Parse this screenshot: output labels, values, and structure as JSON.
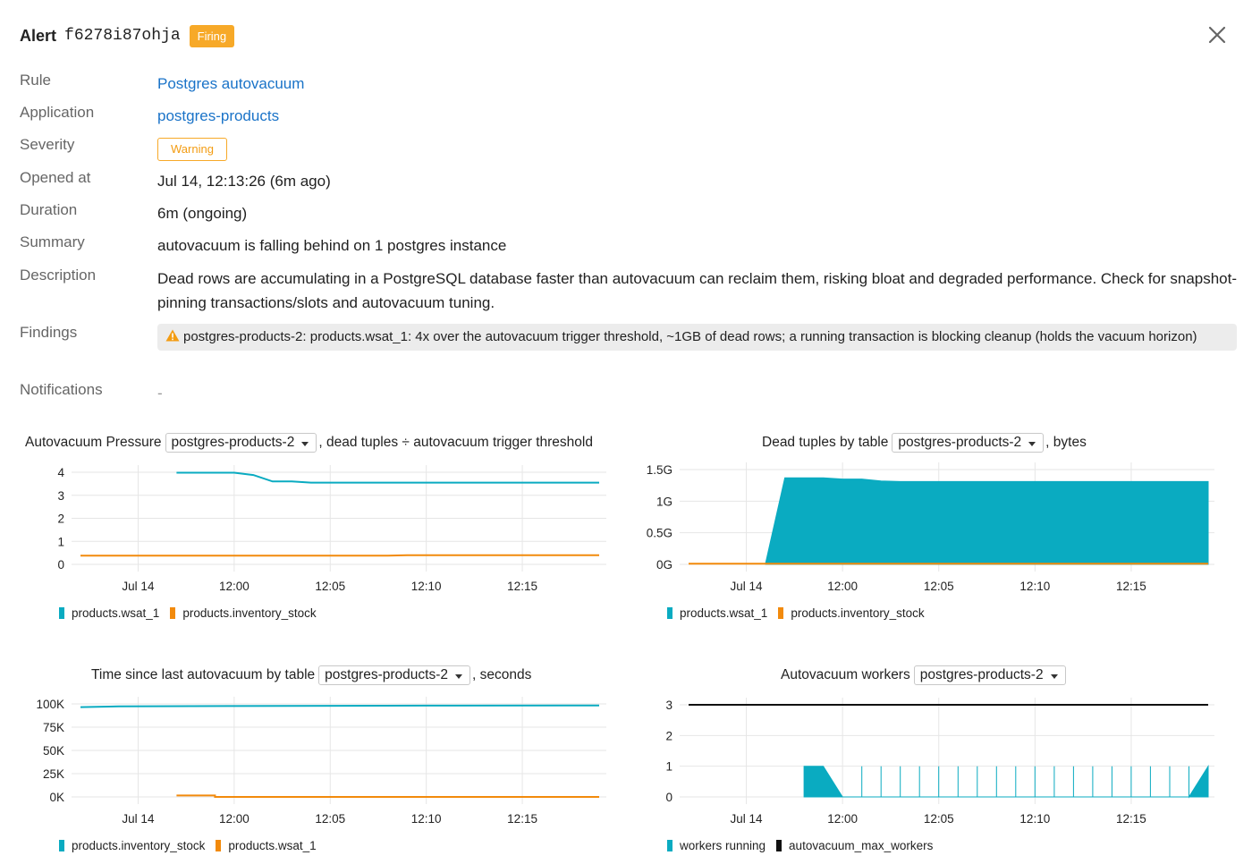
{
  "alert": {
    "title_word": "Alert",
    "id": "f6278i87ohja",
    "status": "Firing",
    "close_label": "×"
  },
  "details": {
    "rule_label": "Rule",
    "rule_value": "Postgres autovacuum",
    "application_label": "Application",
    "application_value": "postgres-products",
    "severity_label": "Severity",
    "severity_value": "Warning",
    "opened_label": "Opened at",
    "opened_value": "Jul 14, 12:13:26 (6m ago)",
    "duration_label": "Duration",
    "duration_value": "6m (ongoing)",
    "summary_label": "Summary",
    "summary_value": "autovacuum is falling behind on 1 postgres instance",
    "description_label": "Description",
    "description_value": "Dead rows are accumulating in a PostgreSQL database faster than autovacuum can reclaim them, risking bloat and degraded performance. Check for snapshot-pinning transactions/slots and autovacuum tuning.",
    "findings_label": "Findings",
    "findings_value": "postgres-products-2: products.wsat_1: 4x over the autovacuum trigger threshold, ~1GB of dead rows; a running transaction is blocking cleanup (holds the vacuum horizon)",
    "notifications_label": "Notifications",
    "notifications_value": "-"
  },
  "colors": {
    "teal": "#0aabc1",
    "orange": "#f28a0c",
    "black": "#111111",
    "grid": "#e6e6e6",
    "firing": "#f7a928",
    "link": "#1a73c8"
  },
  "chart_data": [
    {
      "type": "line",
      "title_prefix": "Autovacuum Pressure",
      "selector": "postgres-products-2",
      "title_suffix": ", dead tuples ÷ autovacuum trigger threshold",
      "x_ticks": [
        "Jul 14",
        "12:00",
        "12:05",
        "12:10",
        "12:15"
      ],
      "y_ticks": [
        "4",
        "3",
        "2",
        "1",
        "0"
      ],
      "ylim": [
        0,
        4
      ],
      "series": [
        {
          "name": "products.wsat_1",
          "color": "#0aabc1",
          "x": [
            "11:57",
            "11:59",
            "12:00",
            "12:01",
            "12:01",
            "12:02",
            "12:03",
            "12:04",
            "12:05",
            "12:10",
            "12:15",
            "12:19"
          ],
          "values": [
            3.98,
            3.98,
            3.98,
            3.88,
            3.88,
            3.6,
            3.6,
            3.55,
            3.55,
            3.55,
            3.55,
            3.55
          ]
        },
        {
          "name": "products.inventory_stock",
          "color": "#f28a0c",
          "x": [
            "11:52",
            "12:00",
            "12:05",
            "12:08",
            "12:09",
            "12:19"
          ],
          "values": [
            0.38,
            0.38,
            0.38,
            0.38,
            0.4,
            0.4
          ]
        }
      ]
    },
    {
      "type": "area",
      "title_prefix": "Dead tuples by table",
      "selector": "postgres-products-2",
      "title_suffix": ", bytes",
      "x_ticks": [
        "Jul 14",
        "12:00",
        "12:05",
        "12:10",
        "12:15"
      ],
      "y_ticks": [
        "1.5G",
        "1G",
        "0.5G",
        "0G"
      ],
      "ylim": [
        0,
        1.5
      ],
      "series": [
        {
          "name": "products.wsat_1",
          "color": "#0aabc1",
          "x": [
            "11:56",
            "11:57",
            "11:59",
            "12:00",
            "12:01",
            "12:02",
            "12:03",
            "12:10",
            "12:19"
          ],
          "values": [
            0.02,
            1.37,
            1.37,
            1.35,
            1.35,
            1.32,
            1.31,
            1.31,
            1.31
          ]
        },
        {
          "name": "products.inventory_stock",
          "color": "#f28a0c",
          "x": [
            "11:52",
            "12:19"
          ],
          "values": [
            0.01,
            0.01
          ]
        }
      ]
    },
    {
      "type": "line",
      "title_prefix": "Time since last autovacuum by table",
      "selector": "postgres-products-2",
      "title_suffix": ", seconds",
      "x_ticks": [
        "Jul 14",
        "12:00",
        "12:05",
        "12:10",
        "12:15"
      ],
      "y_ticks": [
        "100K",
        "75K",
        "50K",
        "25K",
        "0K"
      ],
      "ylim": [
        0,
        100000
      ],
      "series": [
        {
          "name": "products.inventory_stock",
          "color": "#0aabc1",
          "x": [
            "11:52",
            "11:54",
            "12:00",
            "12:10",
            "12:19"
          ],
          "values": [
            96500,
            97300,
            97700,
            98200,
            98400
          ]
        },
        {
          "name": "products.wsat_1",
          "color": "#f28a0c",
          "x": [
            "11:57",
            "11:59",
            "11:59",
            "12:19"
          ],
          "values": [
            1500,
            1500,
            0,
            0
          ]
        }
      ]
    },
    {
      "type": "area",
      "title_prefix": "Autovacuum workers",
      "selector": "postgres-products-2",
      "title_suffix": "",
      "x_ticks": [
        "Jul 14",
        "12:00",
        "12:05",
        "12:10",
        "12:15"
      ],
      "y_ticks": [
        "3",
        "2",
        "1",
        "0"
      ],
      "ylim": [
        0,
        3
      ],
      "series": [
        {
          "name": "workers running",
          "color": "#0aabc1",
          "x": [
            "11:58",
            "11:58",
            "11:59",
            "11:59",
            "12:00",
            "12:01",
            "12:01",
            "12:01",
            "12:02",
            "12:02",
            "12:02",
            "12:03",
            "12:03",
            "12:03",
            "12:04",
            "12:04",
            "12:04",
            "12:05",
            "12:05",
            "12:05",
            "12:06",
            "12:06",
            "12:06",
            "12:07",
            "12:07",
            "12:07",
            "12:08",
            "12:08",
            "12:08",
            "12:09",
            "12:09",
            "12:09",
            "12:10",
            "12:10",
            "12:10",
            "12:11",
            "12:11",
            "12:11",
            "12:12",
            "12:12",
            "12:12",
            "12:13",
            "12:13",
            "12:13",
            "12:14",
            "12:14",
            "12:14",
            "12:15",
            "12:15",
            "12:15",
            "12:16",
            "12:16",
            "12:16",
            "12:17",
            "12:17",
            "12:17",
            "12:18",
            "12:18",
            "12:18",
            "12:19"
          ],
          "values": [
            0,
            1,
            1,
            1,
            0,
            0,
            1,
            0,
            0,
            1,
            0,
            0,
            1,
            0,
            0,
            1,
            0,
            0,
            1,
            0,
            0,
            1,
            0,
            0,
            1,
            0,
            0,
            1,
            0,
            0,
            1,
            0,
            0,
            1,
            0,
            0,
            1,
            0,
            0,
            1,
            0,
            0,
            1,
            0,
            0,
            1,
            0,
            0,
            1,
            0,
            0,
            1,
            0,
            0,
            1,
            0,
            0,
            1,
            0,
            1
          ]
        },
        {
          "name": "autovacuum_max_workers",
          "color": "#111111",
          "x": [
            "11:52",
            "12:19"
          ],
          "values": [
            3,
            3
          ]
        }
      ]
    }
  ]
}
